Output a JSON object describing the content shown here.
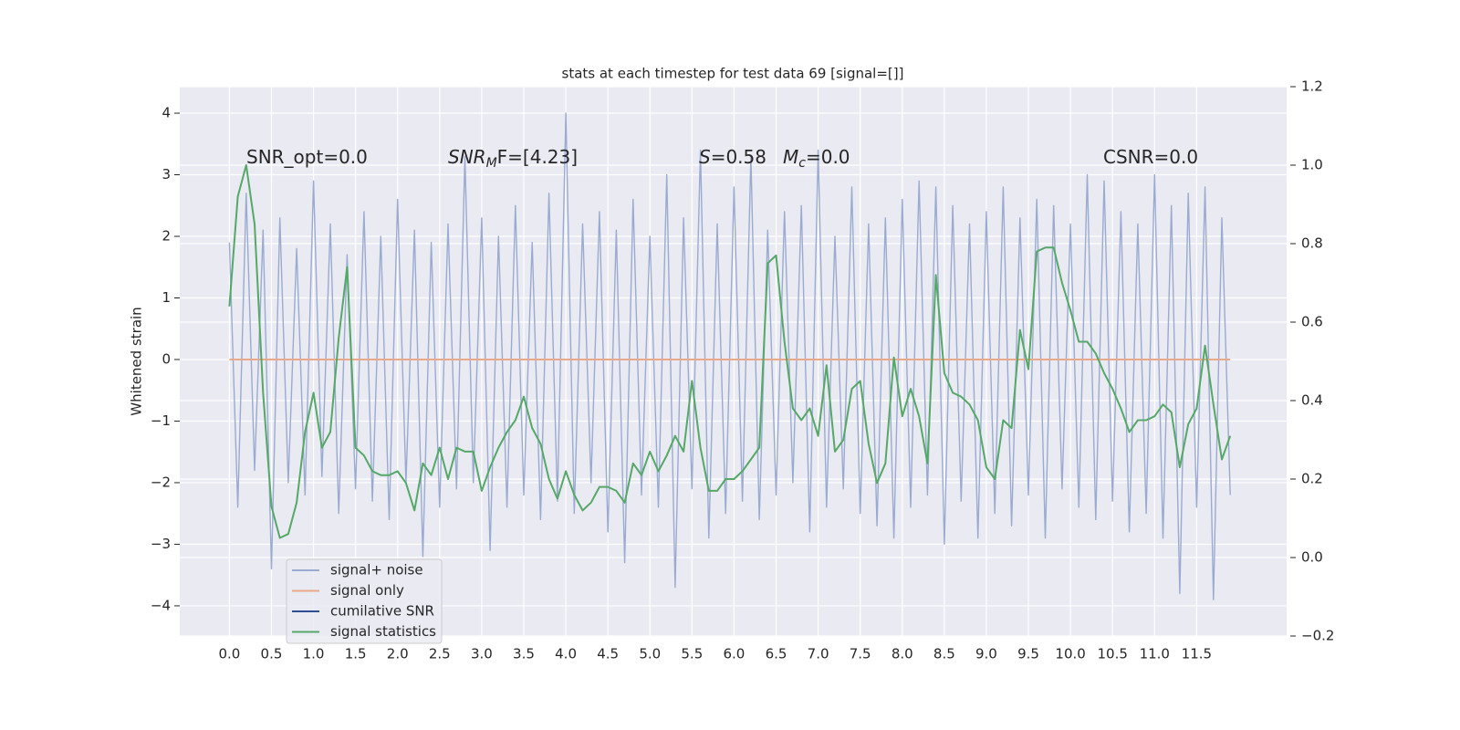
{
  "chart_data": {
    "type": "line",
    "title": "stats at each timestep for test data 69 [signal=[]]",
    "ylabel": "Whitened strain",
    "annotations": [
      {
        "text": "SNR_opt=0.0"
      },
      {
        "italic": "SNR",
        "sub": "M",
        "text": "F=[4.23]"
      },
      {
        "italic": "S",
        "text": "=0.58"
      },
      {
        "italic": "M",
        "sub": "c",
        "text": "=0.0"
      },
      {
        "text": "CSNR=0.0"
      }
    ],
    "x": [
      0,
      0.1,
      0.2,
      0.3,
      0.4,
      0.5,
      0.6,
      0.7,
      0.8,
      0.9,
      1,
      1.1,
      1.2,
      1.3,
      1.4,
      1.5,
      1.6,
      1.7,
      1.8,
      1.9,
      2,
      2.1,
      2.2,
      2.3,
      2.4,
      2.5,
      2.6,
      2.7,
      2.8,
      2.9,
      3,
      3.1,
      3.2,
      3.3,
      3.4,
      3.5,
      3.6,
      3.7,
      3.8,
      3.9,
      4,
      4.1,
      4.2,
      4.3,
      4.4,
      4.5,
      4.6,
      4.7,
      4.8,
      4.9,
      5,
      5.1,
      5.2,
      5.3,
      5.4,
      5.5,
      5.6,
      5.7,
      5.8,
      5.9,
      6,
      6.1,
      6.2,
      6.3,
      6.4,
      6.5,
      6.6,
      6.7,
      6.8,
      6.9,
      7,
      7.1,
      7.2,
      7.3,
      7.4,
      7.5,
      7.6,
      7.7,
      7.8,
      7.9,
      8,
      8.1,
      8.2,
      8.3,
      8.4,
      8.5,
      8.6,
      8.7,
      8.8,
      8.9,
      9,
      9.1,
      9.2,
      9.3,
      9.4,
      9.5,
      9.6,
      9.7,
      9.8,
      9.9,
      10,
      10.1,
      10.2,
      10.3,
      10.4,
      10.5,
      10.6,
      10.7,
      10.8,
      10.9,
      11,
      11.1,
      11.2,
      11.3,
      11.4,
      11.5,
      11.6,
      11.7,
      11.8,
      11.9
    ],
    "series": [
      {
        "name": "signal+ noise",
        "color": "#9aabd0",
        "axis": "y",
        "values": [
          1.9,
          -2.4,
          2.7,
          -1.8,
          2.1,
          -3.4,
          2.3,
          -2.0,
          1.8,
          -2.2,
          2.9,
          -1.9,
          2.2,
          -2.5,
          1.7,
          -2.1,
          2.4,
          -2.3,
          2.0,
          -2.6,
          2.6,
          -2.0,
          2.1,
          -3.2,
          1.9,
          -2.4,
          2.2,
          -2.1,
          3.3,
          -2.0,
          2.3,
          -3.1,
          2.0,
          -2.4,
          2.5,
          -2.2,
          1.9,
          -2.6,
          2.7,
          -2.3,
          4.0,
          -2.5,
          2.2,
          -2.0,
          2.4,
          -2.8,
          2.1,
          -3.3,
          2.6,
          -2.2,
          2.0,
          -2.4,
          3.0,
          -3.7,
          2.3,
          -2.1,
          3.4,
          -2.9,
          2.2,
          -2.5,
          2.8,
          -2.3,
          3.3,
          -2.6,
          2.1,
          -2.2,
          2.4,
          -2.0,
          2.5,
          -2.8,
          3.4,
          -2.4,
          2.0,
          -2.1,
          2.8,
          -2.5,
          2.2,
          -2.7,
          2.3,
          -2.9,
          2.6,
          -2.4,
          2.9,
          -2.2,
          2.8,
          -3.0,
          2.5,
          -2.3,
          2.2,
          -2.9,
          2.4,
          -2.5,
          2.8,
          -2.7,
          2.3,
          -2.2,
          2.6,
          -2.9,
          2.5,
          -2.1,
          2.2,
          -2.4,
          3.0,
          -2.6,
          2.9,
          -2.3,
          2.4,
          -2.8,
          2.2,
          -2.5,
          3.0,
          -2.9,
          2.5,
          -3.8,
          2.7,
          -2.4,
          2.8,
          -3.9,
          2.3,
          -2.2
        ]
      },
      {
        "name": "signal only",
        "color": "#e9a98a",
        "axis": "y",
        "values": [
          0,
          0,
          0,
          0,
          0,
          0,
          0,
          0,
          0,
          0,
          0,
          0,
          0,
          0,
          0,
          0,
          0,
          0,
          0,
          0,
          0,
          0,
          0,
          0,
          0,
          0,
          0,
          0,
          0,
          0,
          0,
          0,
          0,
          0,
          0,
          0,
          0,
          0,
          0,
          0,
          0,
          0,
          0,
          0,
          0,
          0,
          0,
          0,
          0,
          0,
          0,
          0,
          0,
          0,
          0,
          0,
          0,
          0,
          0,
          0,
          0,
          0,
          0,
          0,
          0,
          0,
          0,
          0,
          0,
          0,
          0,
          0,
          0,
          0,
          0,
          0,
          0,
          0,
          0,
          0,
          0,
          0,
          0,
          0,
          0,
          0,
          0,
          0,
          0,
          0,
          0,
          0,
          0,
          0,
          0,
          0,
          0,
          0,
          0,
          0,
          0,
          0,
          0,
          0,
          0,
          0,
          0,
          0,
          0,
          0,
          0,
          0,
          0,
          0,
          0,
          0,
          0,
          0,
          0,
          0
        ]
      },
      {
        "name": "cumilative SNR",
        "color": "#2d4e94",
        "axis": "y2"
      },
      {
        "name": "signal statistics",
        "color": "#55a868",
        "axis": "y2",
        "values": [
          0.64,
          0.92,
          1.0,
          0.85,
          0.42,
          0.13,
          0.05,
          0.06,
          0.14,
          0.32,
          0.42,
          0.28,
          0.32,
          0.56,
          0.74,
          0.28,
          0.26,
          0.22,
          0.21,
          0.21,
          0.22,
          0.19,
          0.12,
          0.24,
          0.21,
          0.28,
          0.2,
          0.28,
          0.27,
          0.27,
          0.17,
          0.23,
          0.28,
          0.32,
          0.35,
          0.41,
          0.33,
          0.29,
          0.2,
          0.15,
          0.22,
          0.16,
          0.12,
          0.14,
          0.18,
          0.18,
          0.17,
          0.14,
          0.24,
          0.21,
          0.27,
          0.22,
          0.26,
          0.31,
          0.27,
          0.45,
          0.28,
          0.17,
          0.17,
          0.2,
          0.2,
          0.22,
          0.25,
          0.28,
          0.75,
          0.77,
          0.55,
          0.38,
          0.35,
          0.38,
          0.31,
          0.49,
          0.27,
          0.3,
          0.43,
          0.45,
          0.29,
          0.19,
          0.24,
          0.51,
          0.36,
          0.43,
          0.36,
          0.24,
          0.72,
          0.47,
          0.42,
          0.41,
          0.39,
          0.35,
          0.23,
          0.2,
          0.35,
          0.33,
          0.58,
          0.48,
          0.78,
          0.79,
          0.79,
          0.7,
          0.63,
          0.55,
          0.55,
          0.52,
          0.47,
          0.43,
          0.38,
          0.32,
          0.35,
          0.35,
          0.36,
          0.39,
          0.37,
          0.23,
          0.34,
          0.38,
          0.54,
          0.39,
          0.25,
          0.31
        ]
      }
    ],
    "xlim": [
      -0.59,
      12.57
    ],
    "ylim": [
      -4.49,
      4.43
    ],
    "y2lim": [
      -0.2,
      1.2
    ],
    "xticks": [
      {
        "value": 0,
        "label": "0.0"
      },
      {
        "value": 0.5,
        "label": "0.5"
      },
      {
        "value": 1,
        "label": "1.0"
      },
      {
        "value": 1.5,
        "label": "1.5"
      },
      {
        "value": 2,
        "label": "2.0"
      },
      {
        "value": 2.5,
        "label": "2.5"
      },
      {
        "value": 3,
        "label": "3.0"
      },
      {
        "value": 3.5,
        "label": "3.5"
      },
      {
        "value": 4,
        "label": "4.0"
      },
      {
        "value": 4.5,
        "label": "4.5"
      },
      {
        "value": 5,
        "label": "5.0"
      },
      {
        "value": 5.5,
        "label": "5.5"
      },
      {
        "value": 6,
        "label": "6.0"
      },
      {
        "value": 6.5,
        "label": "6.5"
      },
      {
        "value": 7,
        "label": "7.0"
      },
      {
        "value": 7.5,
        "label": "7.5"
      },
      {
        "value": 8,
        "label": "8.0"
      },
      {
        "value": 8.5,
        "label": "8.5"
      },
      {
        "value": 9,
        "label": "9.0"
      },
      {
        "value": 9.5,
        "label": "9.5"
      },
      {
        "value": 10,
        "label": "10.0"
      },
      {
        "value": 10.5,
        "label": "10.5"
      },
      {
        "value": 11,
        "label": "11.0"
      },
      {
        "value": 11.5,
        "label": "11.5"
      }
    ],
    "yticks": [
      {
        "value": -4,
        "label": "−4"
      },
      {
        "value": -3,
        "label": "−3"
      },
      {
        "value": -2,
        "label": "−2"
      },
      {
        "value": -1,
        "label": "−1"
      },
      0,
      1,
      2,
      3,
      4
    ],
    "y2ticks": [
      {
        "value": -0.2,
        "label": "−0.2"
      },
      {
        "value": 0,
        "label": "0.0"
      },
      {
        "value": 0.2,
        "label": "0.2"
      },
      {
        "value": 0.4,
        "label": "0.4"
      },
      {
        "value": 0.6,
        "label": "0.6"
      },
      {
        "value": 0.8,
        "label": "0.8"
      },
      {
        "value": 1,
        "label": "1.0"
      },
      {
        "value": 1.2,
        "label": "1.2"
      }
    ],
    "grid": true,
    "legend": "lower left"
  }
}
